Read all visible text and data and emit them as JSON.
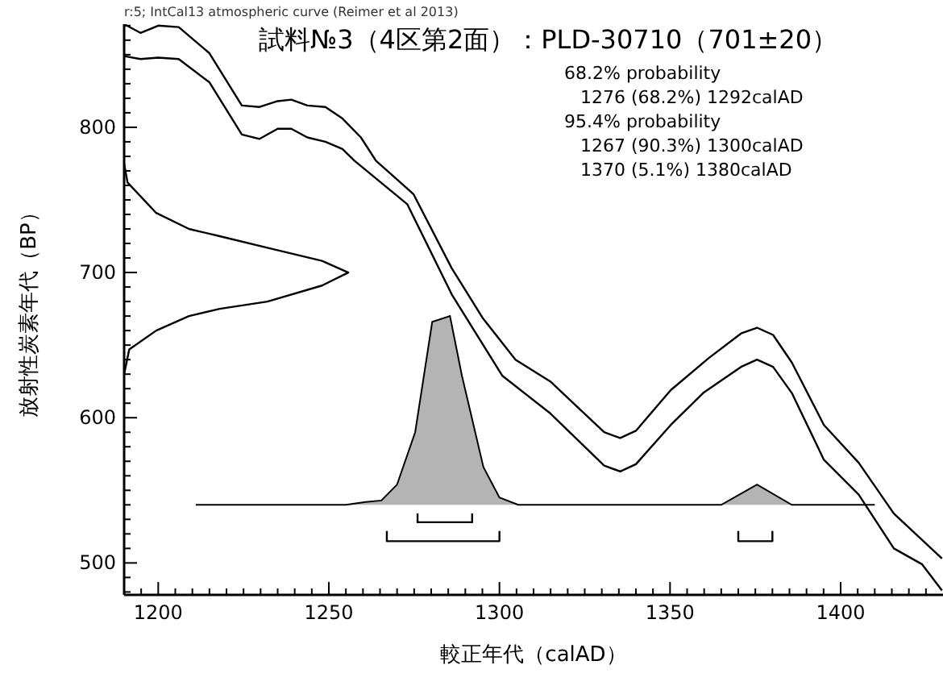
{
  "chart_data": {
    "type": "line",
    "title": "試料№3（4区第2面）：PLD-30710（701±20）",
    "xlabel": "較正年代（calAD）",
    "ylabel": "放射性炭素年代（BP）",
    "annotations": [
      "r:5; IntCal13 atmospheric curve (Reimer et al 2013)",
      "68.2% probability",
      "1276 (68.2%) 1292calAD",
      "95.4% probability",
      "1267 (90.3%) 1300calAD",
      "1370 (5.1%) 1380calAD"
    ],
    "xlim": [
      1190,
      1430
    ],
    "ylim": [
      478,
      871
    ],
    "xticks": [
      {
        "value": 1190,
        "label": null
      },
      {
        "value": 1195,
        "label": null
      },
      1200,
      {
        "value": 1205,
        "label": null
      },
      {
        "value": 1210,
        "label": null
      },
      {
        "value": 1215,
        "label": null
      },
      {
        "value": 1220,
        "label": null
      },
      {
        "value": 1225,
        "label": null
      },
      {
        "value": 1230,
        "label": null
      },
      {
        "value": 1235,
        "label": null
      },
      {
        "value": 1240,
        "label": null
      },
      {
        "value": 1245,
        "label": null
      },
      1250,
      {
        "value": 1255,
        "label": null
      },
      {
        "value": 1260,
        "label": null
      },
      {
        "value": 1265,
        "label": null
      },
      {
        "value": 1270,
        "label": null
      },
      {
        "value": 1275,
        "label": null
      },
      {
        "value": 1280,
        "label": null
      },
      {
        "value": 1285,
        "label": null
      },
      {
        "value": 1290,
        "label": null
      },
      {
        "value": 1295,
        "label": null
      },
      1300,
      {
        "value": 1305,
        "label": null
      },
      {
        "value": 1310,
        "label": null
      },
      {
        "value": 1315,
        "label": null
      },
      {
        "value": 1320,
        "label": null
      },
      {
        "value": 1325,
        "label": null
      },
      {
        "value": 1330,
        "label": null
      },
      {
        "value": 1335,
        "label": null
      },
      {
        "value": 1340,
        "label": null
      },
      {
        "value": 1345,
        "label": null
      },
      1350,
      {
        "value": 1355,
        "label": null
      },
      {
        "value": 1360,
        "label": null
      },
      {
        "value": 1365,
        "label": null
      },
      {
        "value": 1370,
        "label": null
      },
      {
        "value": 1375,
        "label": null
      },
      {
        "value": 1380,
        "label": null
      },
      {
        "value": 1385,
        "label": null
      },
      {
        "value": 1390,
        "label": null
      },
      {
        "value": 1395,
        "label": null
      },
      1400,
      {
        "value": 1405,
        "label": null
      },
      {
        "value": 1410,
        "label": null
      },
      {
        "value": 1415,
        "label": null
      },
      {
        "value": 1420,
        "label": null
      },
      {
        "value": 1425,
        "label": null
      }
    ],
    "yticks": [
      {
        "value": 480,
        "label": null
      },
      {
        "value": 490,
        "label": null
      },
      500,
      {
        "value": 510,
        "label": null
      },
      {
        "value": 520,
        "label": null
      },
      {
        "value": 530,
        "label": null
      },
      {
        "value": 540,
        "label": null
      },
      {
        "value": 550,
        "label": null
      },
      {
        "value": 560,
        "label": null
      },
      {
        "value": 570,
        "label": null
      },
      {
        "value": 580,
        "label": null
      },
      {
        "value": 590,
        "label": null
      },
      600,
      {
        "value": 610,
        "label": null
      },
      {
        "value": 620,
        "label": null
      },
      {
        "value": 630,
        "label": null
      },
      {
        "value": 640,
        "label": null
      },
      {
        "value": 650,
        "label": null
      },
      {
        "value": 660,
        "label": null
      },
      {
        "value": 670,
        "label": null
      },
      {
        "value": 680,
        "label": null
      },
      {
        "value": 690,
        "label": null
      },
      700,
      {
        "value": 710,
        "label": null
      },
      {
        "value": 720,
        "label": null
      },
      {
        "value": 730,
        "label": null
      },
      {
        "value": 740,
        "label": null
      },
      {
        "value": 750,
        "label": null
      },
      {
        "value": 760,
        "label": null
      },
      {
        "value": 770,
        "label": null
      },
      {
        "value": 780,
        "label": null
      },
      {
        "value": 790,
        "label": null
      },
      800,
      {
        "value": 810,
        "label": null
      },
      {
        "value": 820,
        "label": null
      },
      {
        "value": 830,
        "label": null
      },
      {
        "value": 840,
        "label": null
      },
      {
        "value": 850,
        "label": null
      },
      {
        "value": 860,
        "label": null
      },
      {
        "value": 870,
        "label": null
      }
    ],
    "series": [
      {
        "color": "#000000",
        "x": [
          1190,
          1194.8,
          1200,
          1206,
          1215,
          1224.5,
          1229.7,
          1235,
          1239,
          1243.7,
          1249,
          1254,
          1259.4,
          1263.8,
          1274.8,
          1286,
          1295,
          1304.7,
          1314.9,
          1330.7,
          1335.4,
          1340,
          1350.2,
          1361.3,
          1370.8,
          1375.5,
          1380.2,
          1385.7,
          1395.1,
          1405.3,
          1415.6,
          1429.7
        ],
        "values": [
          871,
          865,
          870,
          869,
          851,
          815,
          814,
          818,
          819,
          815,
          814,
          806,
          793,
          777,
          754,
          703,
          669,
          640,
          625,
          590,
          586,
          591,
          619,
          641,
          658,
          662,
          657,
          638,
          595,
          569,
          534,
          503
        ]
      },
      {
        "color": "#000000",
        "x": [
          1190,
          1194.8,
          1200,
          1206,
          1215,
          1224.5,
          1229.7,
          1235,
          1239,
          1243.7,
          1249,
          1254,
          1257.5,
          1273,
          1286,
          1295,
          1300.8,
          1314.9,
          1330.7,
          1335.4,
          1340,
          1350.2,
          1359.7,
          1370.8,
          1375.5,
          1380.2,
          1385.7,
          1395.1,
          1405.3,
          1415.6,
          1423.9,
          1429.7
        ],
        "values": [
          849,
          847,
          848,
          847,
          831,
          795,
          792,
          799,
          799,
          793,
          790,
          785,
          777,
          747,
          685,
          651,
          629,
          603,
          567,
          563,
          568,
          595,
          617,
          635,
          640,
          635,
          617,
          571,
          547,
          510,
          499,
          481
        ]
      },
      {
        "color": "#000000",
        "x": [
          1190,
          1191,
          1199.4,
          1209,
          1218,
          1232,
          1248,
          1255.7,
          1248,
          1232,
          1218,
          1209,
          1199.4,
          1191.5,
          1190
        ],
        "values": [
          775,
          762,
          741,
          730,
          725,
          717,
          708,
          700,
          691,
          680,
          675,
          670,
          660,
          647,
          630
        ]
      },
      {
        "type": "area",
        "color": "#b4b4b4",
        "x": [
          1211,
          1255,
          1260.8,
          1265.4,
          1270,
          1275.3,
          1280.3,
          1285.5,
          1289,
          1295.3,
          1300,
          1305.5,
          1365,
          1375.5,
          1385.7,
          1410
        ],
        "values": [
          540,
          540,
          542,
          543,
          554,
          590,
          666,
          670,
          629,
          566,
          545,
          540,
          540,
          554,
          540,
          540
        ]
      },
      {
        "color": "#000000",
        "x": [
          1276,
          1276,
          1292,
          1292
        ],
        "values": [
          534,
          528,
          528,
          534
        ]
      },
      {
        "color": "#000000",
        "x": [
          1267,
          1267,
          1300,
          1300
        ],
        "values": [
          522,
          515,
          515,
          522
        ]
      },
      {
        "color": "#000000",
        "x": [
          1370,
          1370,
          1380,
          1380
        ],
        "values": [
          522,
          515,
          515,
          522
        ]
      }
    ]
  }
}
